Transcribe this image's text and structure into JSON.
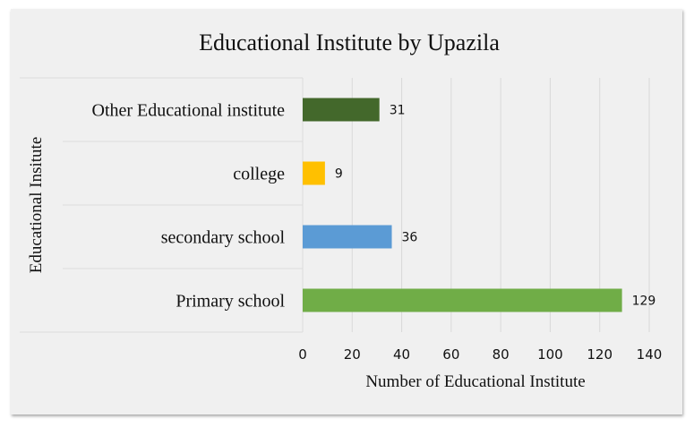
{
  "chart_data": {
    "type": "bar",
    "orientation": "horizontal",
    "title": "Educational Institute by Upazila",
    "xlabel": "Number of Educational Institute",
    "ylabel": "Educational Insitute",
    "categories": [
      "Primary school",
      "secondary school",
      "college",
      "Other Educational institute"
    ],
    "values": [
      129,
      36,
      9,
      31
    ],
    "colors": [
      "#70ad47",
      "#5b9bd5",
      "#ffc000",
      "#43682b"
    ],
    "xlim": [
      0,
      140
    ],
    "xticks": [
      0,
      20,
      40,
      60,
      80,
      100,
      120,
      140
    ],
    "grid": true,
    "legend": "none"
  }
}
